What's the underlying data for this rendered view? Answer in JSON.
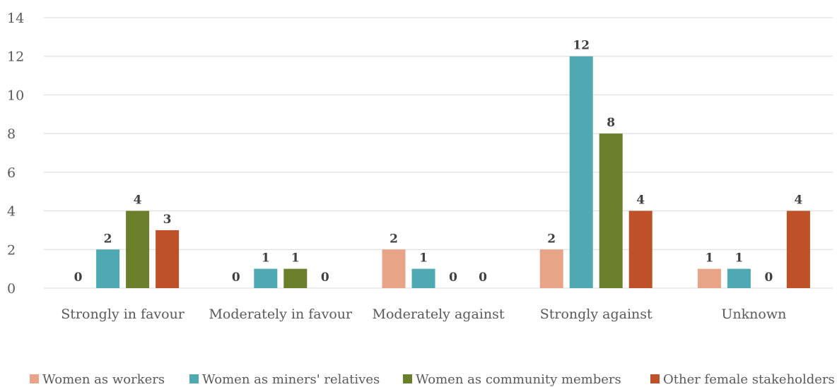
{
  "chart_data": {
    "type": "bar",
    "title": "",
    "xlabel": "",
    "ylabel": "",
    "ylim": [
      0,
      14
    ],
    "yticks": [
      0,
      2,
      4,
      6,
      8,
      10,
      12,
      14
    ],
    "grid": true,
    "legend_position": "bottom",
    "categories": [
      "Strongly in favour",
      "Moderately in favour",
      "Moderately against",
      "Strongly against",
      "Unknown"
    ],
    "series": [
      {
        "name": "Women as workers",
        "color": "#e8a486",
        "values": [
          0,
          0,
          2,
          2,
          1
        ]
      },
      {
        "name": "Women as miners' relatives",
        "color": "#4fa9b3",
        "values": [
          2,
          1,
          1,
          12,
          1
        ]
      },
      {
        "name": "Women as community members",
        "color": "#6b7f2a",
        "values": [
          4,
          1,
          0,
          8,
          0
        ]
      },
      {
        "name": "Other female stakeholders",
        "color": "#bf5128",
        "values": [
          3,
          0,
          0,
          4,
          4
        ]
      }
    ]
  }
}
